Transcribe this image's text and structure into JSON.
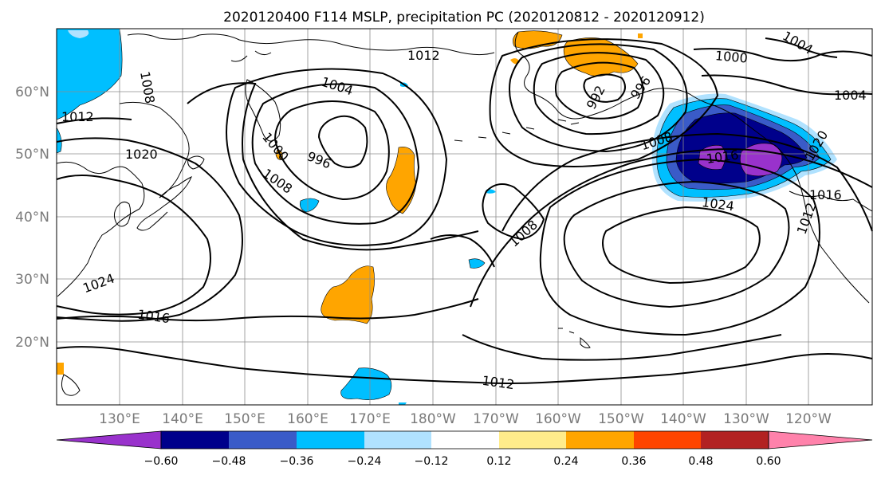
{
  "title": "2020120400 F114 MSLP, precipitation PC (2020120812 - 2020120912)",
  "axes": {
    "lon_ticks": [
      "130°E",
      "140°E",
      "150°E",
      "160°E",
      "170°E",
      "180°W",
      "170°W",
      "160°W",
      "150°W",
      "140°W",
      "130°W",
      "120°W"
    ],
    "lat_ticks": [
      "60°N",
      "50°N",
      "40°N",
      "30°N",
      "20°N"
    ]
  },
  "colorbar": {
    "colors": [
      "#9932cc",
      "#00008b",
      "#3a5bc8",
      "#00bfff",
      "#b0e2ff",
      "#ffffff",
      "#ffec8b",
      "#ffa500",
      "#ff4500",
      "#b22222",
      "#ff82ab"
    ],
    "tick_labels": [
      "−0.60",
      "−0.48",
      "−0.36",
      "−0.24",
      "−0.12",
      "0.12",
      "0.24",
      "0.36",
      "0.48",
      "0.60"
    ]
  },
  "isobar_labels": [
    {
      "text": "1012"
    },
    {
      "text": "1008"
    },
    {
      "text": "1020"
    },
    {
      "text": "1024"
    },
    {
      "text": "1016"
    },
    {
      "text": "1004"
    },
    {
      "text": "1000"
    },
    {
      "text": "996"
    },
    {
      "text": "1008"
    },
    {
      "text": "1012"
    },
    {
      "text": "1000"
    },
    {
      "text": "1004"
    },
    {
      "text": "1004"
    },
    {
      "text": "992"
    },
    {
      "text": "996"
    },
    {
      "text": "1008"
    },
    {
      "text": "1016"
    },
    {
      "text": "1020"
    },
    {
      "text": "1024"
    },
    {
      "text": "1016"
    },
    {
      "text": "1008"
    },
    {
      "text": "1012"
    },
    {
      "text": "1012"
    }
  ],
  "colors": {
    "isobar": "#000000",
    "grid": "#8c8c8c",
    "tick_text": "#7a7a7a"
  }
}
